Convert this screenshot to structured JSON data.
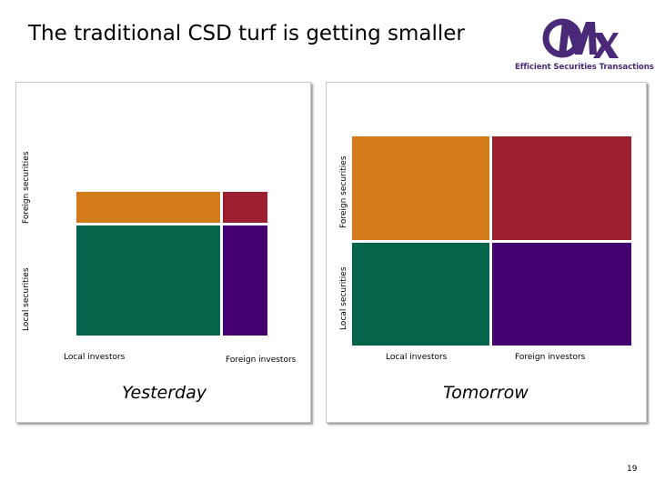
{
  "slide": {
    "title": "The traditional CSD turf is getting smaller",
    "page_number": "19"
  },
  "logo": {
    "tagline": "Efficient Securities Transactions",
    "brand_color": "#4a2a78"
  },
  "yesterday": {
    "caption": "Yesterday",
    "y_label_foreign": "Foreign securities",
    "y_label_local": "Local securities",
    "x_label_local": "Local investors",
    "x_label_foreign": "Foreign investors"
  },
  "tomorrow": {
    "caption": "Tomorrow",
    "y_label_foreign": "Foreign securities",
    "y_label_local": "Local securities",
    "x_label_local": "Local investors",
    "x_label_foreign": "Foreign investors"
  },
  "colors": {
    "local_investors_foreign_securities": "#d37b1a",
    "foreign_investors_foreign_securities": "#9a1f2f",
    "local_investors_local_securities": "#036449",
    "foreign_investors_local_securities": "#420070"
  }
}
